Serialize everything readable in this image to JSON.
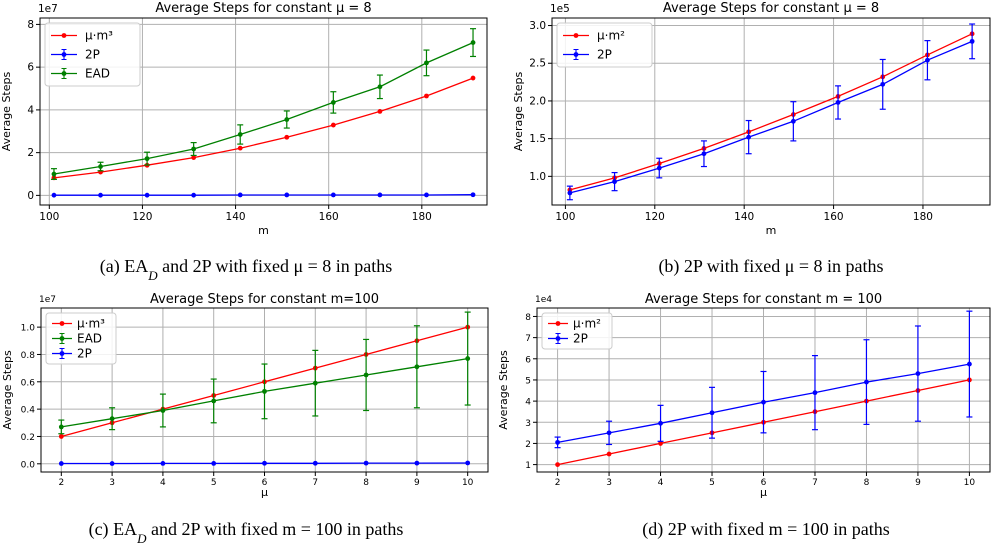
{
  "chart_data": [
    {
      "id": "a",
      "type": "line",
      "title": "Average Steps for constant μ = 8",
      "xlabel": "m",
      "ylabel": "Average Steps",
      "scale_label": "1e7",
      "caption": "(a) EA_D and 2P with fixed μ = 8 in paths",
      "x": [
        101,
        111,
        121,
        131,
        141,
        151,
        161,
        171,
        181,
        191
      ],
      "xlim": [
        98,
        194
      ],
      "xticks": [
        100,
        120,
        140,
        160,
        180
      ],
      "ylim": [
        -0.45,
        8.3
      ],
      "yticks": [
        0,
        2,
        4,
        6,
        8
      ],
      "legend_placement": "upper-left",
      "grid": true,
      "series": [
        {
          "name": "μ·m³",
          "color": "#ff0000",
          "errorbars": false,
          "values": [
            0.82,
            1.09,
            1.41,
            1.77,
            2.21,
            2.72,
            3.29,
            3.93,
            4.65,
            5.49
          ]
        },
        {
          "name": "2P",
          "color": "#0000ff",
          "errorbars": true,
          "values": [
            0.01,
            0.01,
            0.01,
            0.01,
            0.02,
            0.02,
            0.02,
            0.02,
            0.02,
            0.03
          ],
          "errors": [
            0.0,
            0.0,
            0.0,
            0.0,
            0.0,
            0.0,
            0.0,
            0.0,
            0.0,
            0.0
          ]
        },
        {
          "name": "EAD",
          "color": "#008000",
          "errorbars": true,
          "values": [
            1.0,
            1.35,
            1.72,
            2.17,
            2.85,
            3.55,
            4.35,
            5.08,
            6.2,
            7.15
          ],
          "errors": [
            0.25,
            0.2,
            0.3,
            0.3,
            0.45,
            0.4,
            0.5,
            0.55,
            0.6,
            0.65
          ]
        }
      ]
    },
    {
      "id": "b",
      "type": "line",
      "title": "Average Steps for constant μ = 8",
      "xlabel": "m",
      "ylabel": "Average Steps",
      "scale_label": "1e5",
      "caption": "(b) 2P with fixed μ = 8 in paths",
      "x": [
        101,
        111,
        121,
        131,
        141,
        151,
        161,
        171,
        181,
        191
      ],
      "xlim": [
        97,
        195
      ],
      "xticks": [
        100,
        120,
        140,
        160,
        180
      ],
      "ylim": [
        0.62,
        3.1
      ],
      "yticks": [
        1.0,
        1.5,
        2.0,
        2.5,
        3.0
      ],
      "ytick_labels": [
        "1.0",
        "1.5",
        "2.0",
        "2.5",
        "3.0"
      ],
      "legend_placement": "upper-left",
      "grid": true,
      "series": [
        {
          "name": "μ·m²",
          "color": "#ff0000",
          "errorbars": false,
          "values": [
            0.82,
            0.98,
            1.17,
            1.37,
            1.59,
            1.82,
            2.06,
            2.32,
            2.61,
            2.89
          ]
        },
        {
          "name": "2P",
          "color": "#0000ff",
          "errorbars": true,
          "values": [
            0.78,
            0.93,
            1.11,
            1.3,
            1.52,
            1.73,
            1.98,
            2.22,
            2.54,
            2.79
          ],
          "errors": [
            0.09,
            0.12,
            0.13,
            0.17,
            0.22,
            0.26,
            0.22,
            0.33,
            0.26,
            0.23
          ]
        }
      ]
    },
    {
      "id": "c",
      "type": "line",
      "title": "Average Steps for constant m=100",
      "xlabel": "μ",
      "ylabel": "Average Steps",
      "scale_label": "1e7",
      "caption": "(c) EA_D and 2P with fixed m = 100 in paths",
      "x": [
        2,
        3,
        4,
        5,
        6,
        7,
        8,
        9,
        10
      ],
      "xlim": [
        1.6,
        10.4
      ],
      "xticks": [
        2,
        3,
        4,
        5,
        6,
        7,
        8,
        9,
        10
      ],
      "ylim": [
        -0.06,
        1.14
      ],
      "yticks": [
        0.0,
        0.2,
        0.4,
        0.6,
        0.8,
        1.0
      ],
      "ytick_labels": [
        "0.0",
        "0.2",
        "0.4",
        "0.6",
        "0.8",
        "1.0"
      ],
      "legend_placement": "upper-left",
      "grid": true,
      "series": [
        {
          "name": "μ·m³",
          "color": "#ff0000",
          "errorbars": false,
          "values": [
            0.2,
            0.3,
            0.4,
            0.5,
            0.6,
            0.7,
            0.8,
            0.9,
            1.0
          ]
        },
        {
          "name": "EAD",
          "color": "#008000",
          "errorbars": true,
          "values": [
            0.27,
            0.33,
            0.39,
            0.46,
            0.53,
            0.59,
            0.65,
            0.71,
            0.77
          ],
          "errors": [
            0.05,
            0.08,
            0.12,
            0.16,
            0.2,
            0.24,
            0.26,
            0.3,
            0.34
          ]
        },
        {
          "name": "2P",
          "color": "#0000ff",
          "errorbars": true,
          "values": [
            0.002,
            0.002,
            0.003,
            0.003,
            0.004,
            0.004,
            0.005,
            0.005,
            0.006
          ],
          "errors": [
            0.0,
            0.0,
            0.0,
            0.0,
            0.0,
            0.0,
            0.0,
            0.0,
            0.0
          ]
        }
      ]
    },
    {
      "id": "d",
      "type": "line",
      "title": "Average Steps for constant m = 100",
      "xlabel": "μ",
      "ylabel": "Average Steps",
      "scale_label": "1e4",
      "caption": "(d) 2P with fixed m = 100 in paths",
      "x": [
        2,
        3,
        4,
        5,
        6,
        7,
        8,
        9,
        10
      ],
      "xlim": [
        1.6,
        10.4
      ],
      "xticks": [
        2,
        3,
        4,
        5,
        6,
        7,
        8,
        9,
        10
      ],
      "ylim": [
        0.65,
        8.4
      ],
      "yticks": [
        1,
        2,
        3,
        4,
        5,
        6,
        7,
        8
      ],
      "legend_placement": "upper-left",
      "grid": true,
      "series": [
        {
          "name": "μ·m²",
          "color": "#ff0000",
          "errorbars": false,
          "values": [
            1.0,
            1.5,
            2.0,
            2.5,
            3.0,
            3.5,
            4.0,
            4.5,
            5.0
          ]
        },
        {
          "name": "2P",
          "color": "#0000ff",
          "errorbars": true,
          "values": [
            2.05,
            2.5,
            2.95,
            3.45,
            3.95,
            4.4,
            4.9,
            5.3,
            5.75
          ],
          "errors": [
            0.25,
            0.55,
            0.85,
            1.2,
            1.45,
            1.75,
            2.0,
            2.25,
            2.5
          ]
        }
      ]
    }
  ]
}
